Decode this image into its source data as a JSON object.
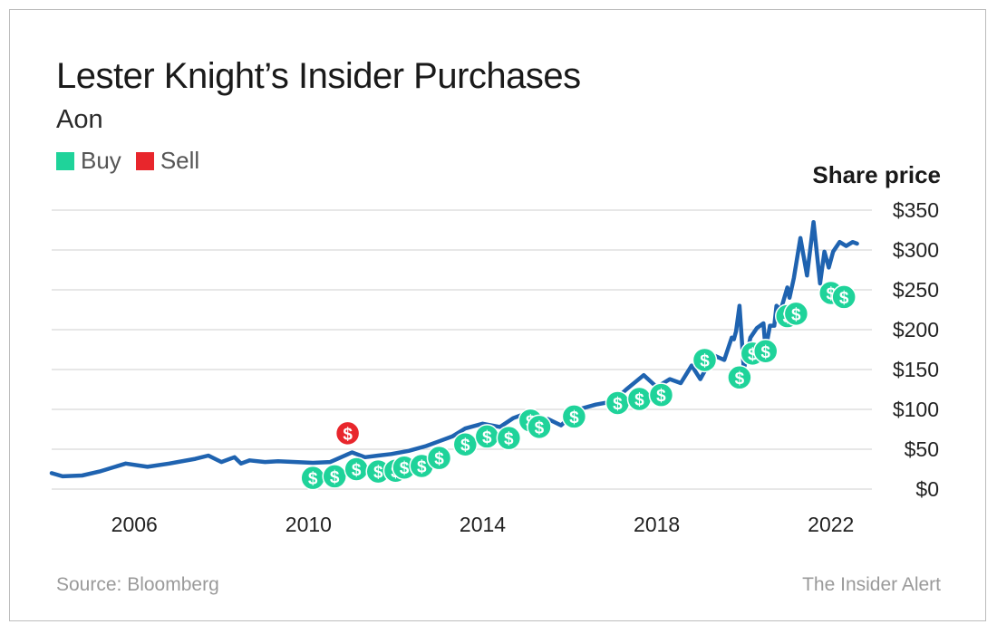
{
  "title": "Lester Knight’s Insider Purchases",
  "subtitle": "Aon",
  "legend": [
    {
      "label": "Buy",
      "color": "#1fd39a"
    },
    {
      "label": "Sell",
      "color": "#e8262c"
    }
  ],
  "source": "Source: Bloomberg",
  "credit": "The Insider Alert",
  "chart_data": {
    "type": "line",
    "title": "Lester Knight’s Insider Purchases",
    "subtitle": "Aon",
    "ylabel": "Share price",
    "y_axis_side": "right",
    "ylim": [
      0,
      350
    ],
    "y_ticks": [
      0,
      50,
      100,
      150,
      200,
      250,
      300,
      350
    ],
    "y_tick_labels": [
      "$0",
      "$50",
      "$100",
      "$150",
      "$200",
      "$250",
      "$300",
      "$350"
    ],
    "xlim": [
      2004.1,
      2022.9
    ],
    "x_ticks": [
      2006,
      2010,
      2014,
      2018,
      2022
    ],
    "x_tick_labels": [
      "2006",
      "2010",
      "2014",
      "2018",
      "2022"
    ],
    "grid": true,
    "legend_position": "top-left",
    "line_color": "#1f63b0",
    "series": [
      {
        "x": [
          2004.1,
          2004.35,
          2004.8,
          2005.2,
          2005.8,
          2006.3,
          2006.8,
          2007.4,
          2007.7,
          2008.0,
          2008.3,
          2008.45,
          2008.65,
          2009.0,
          2009.3,
          2009.7,
          2010.1,
          2010.5,
          2011.0,
          2011.3,
          2011.6,
          2011.9,
          2012.3,
          2012.7,
          2013.0,
          2013.3,
          2013.6,
          2014.0,
          2014.4,
          2014.7,
          2015.0,
          2015.3,
          2015.5,
          2015.8,
          2016.2,
          2016.6,
          2017.0,
          2017.3,
          2017.7,
          2018.0,
          2018.3,
          2018.55,
          2018.8,
          2019.0,
          2019.3,
          2019.55,
          2019.72,
          2019.77,
          2019.82,
          2019.9,
          2020.0,
          2020.15,
          2020.3,
          2020.45,
          2020.5,
          2020.6,
          2020.7,
          2020.75,
          2020.85,
          2021.0,
          2021.05,
          2021.15,
          2021.3,
          2021.45,
          2021.6,
          2021.75,
          2021.85,
          2021.95,
          2022.05,
          2022.2,
          2022.35,
          2022.5,
          2022.6
        ],
        "y": [
          20,
          16,
          17,
          22,
          32,
          28,
          32,
          38,
          42,
          34,
          40,
          32,
          36,
          34,
          35,
          34,
          33,
          34,
          46,
          40,
          42,
          44,
          48,
          54,
          60,
          66,
          76,
          82,
          78,
          89,
          95,
          86,
          88,
          80,
          100,
          106,
          110,
          125,
          143,
          128,
          138,
          133,
          155,
          138,
          168,
          162,
          190,
          188,
          198,
          230,
          150,
          190,
          202,
          208,
          175,
          205,
          205,
          230,
          225,
          253,
          240,
          265,
          315,
          268,
          335,
          258,
          298,
          278,
          298,
          310,
          305,
          310,
          308
        ]
      }
    ],
    "trades": [
      {
        "type": "sell",
        "x": 2010.9,
        "y": 70
      },
      {
        "type": "buy",
        "x": 2010.1,
        "y": 14
      },
      {
        "type": "buy",
        "x": 2010.6,
        "y": 16
      },
      {
        "type": "buy",
        "x": 2011.1,
        "y": 25
      },
      {
        "type": "buy",
        "x": 2011.6,
        "y": 22
      },
      {
        "type": "buy",
        "x": 2012.0,
        "y": 23
      },
      {
        "type": "buy",
        "x": 2012.2,
        "y": 27
      },
      {
        "type": "buy",
        "x": 2012.6,
        "y": 29
      },
      {
        "type": "buy",
        "x": 2013.0,
        "y": 39
      },
      {
        "type": "buy",
        "x": 2013.6,
        "y": 56
      },
      {
        "type": "buy",
        "x": 2014.1,
        "y": 66
      },
      {
        "type": "buy",
        "x": 2014.6,
        "y": 64
      },
      {
        "type": "buy",
        "x": 2015.1,
        "y": 86
      },
      {
        "type": "buy",
        "x": 2015.3,
        "y": 78
      },
      {
        "type": "buy",
        "x": 2016.1,
        "y": 91
      },
      {
        "type": "buy",
        "x": 2017.1,
        "y": 108
      },
      {
        "type": "buy",
        "x": 2017.6,
        "y": 113
      },
      {
        "type": "buy",
        "x": 2018.1,
        "y": 118
      },
      {
        "type": "buy",
        "x": 2019.1,
        "y": 162
      },
      {
        "type": "buy",
        "x": 2019.9,
        "y": 140
      },
      {
        "type": "buy",
        "x": 2020.2,
        "y": 170
      },
      {
        "type": "buy",
        "x": 2020.5,
        "y": 173
      },
      {
        "type": "buy",
        "x": 2021.0,
        "y": 217
      },
      {
        "type": "buy",
        "x": 2021.2,
        "y": 220
      },
      {
        "type": "buy",
        "x": 2022.0,
        "y": 246
      },
      {
        "type": "buy",
        "x": 2022.3,
        "y": 241
      }
    ]
  }
}
